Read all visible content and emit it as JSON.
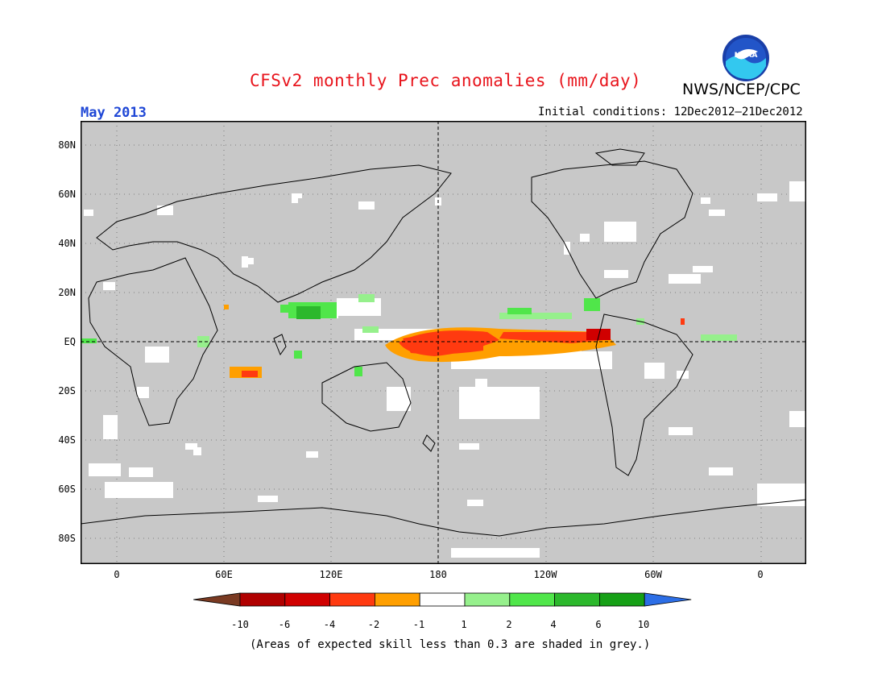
{
  "title": "CFSv2 monthly Prec anomalies (mm/day)",
  "agency": "NWS/NCEP/CPC",
  "logo_text": "NOAA",
  "target_month": "May 2013",
  "initial_conditions": "Initial conditions: 12Dec2012–21Dec2012",
  "footnote": "(Areas of expected skill less than 0.3 are shaded in grey.)",
  "map": {
    "latitude_labels": [
      "80N",
      "60N",
      "40N",
      "20N",
      "EQ",
      "20S",
      "40S",
      "60S",
      "80S"
    ],
    "longitude_labels": [
      "0",
      "60E",
      "120E",
      "180",
      "120W",
      "60W",
      "0"
    ],
    "colors": {
      "low_skill_grey": "#c8c8c8",
      "no_signal_white": "#ffffff",
      "coastline": "#000000"
    }
  },
  "colorbar": {
    "tick_labels": [
      "-10",
      "-6",
      "-4",
      "-2",
      "-1",
      "1",
      "2",
      "4",
      "6",
      "10"
    ],
    "bin_colors": [
      "#7a3a22",
      "#b00000",
      "#d00000",
      "#ff3a10",
      "#ff9f00",
      "#ffffff",
      "#96f08c",
      "#50e64a",
      "#2cb82c",
      "#16a016",
      "#2c6ee6"
    ]
  }
}
